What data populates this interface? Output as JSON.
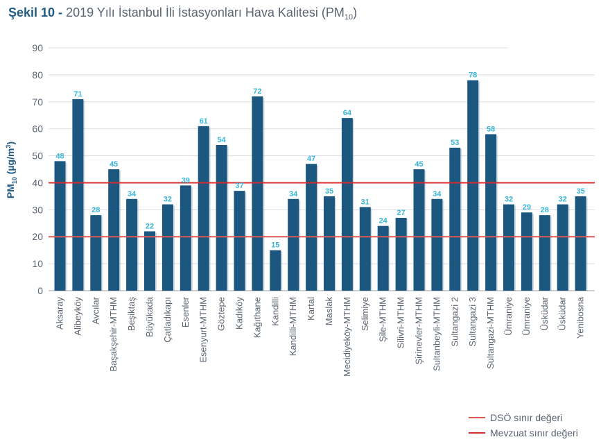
{
  "title": {
    "figure": "Şekil 10 -",
    "text": "2019 Yılı İstanbul İli İstasyonları Hava Kalitesi (PM",
    "sub": "10",
    "close": ")"
  },
  "chart_data": {
    "type": "bar",
    "ylabel": "PM10 (µg/m³)",
    "ylim": [
      0,
      90
    ],
    "yticks": [
      0,
      10,
      20,
      30,
      40,
      50,
      60,
      70,
      80,
      90
    ],
    "grid": true,
    "categories": [
      "Aksaray",
      "Alibeyköy",
      "Avcılar",
      "Başakşehir-MTHM",
      "Beşiktaş",
      "Büyükada",
      "Çatladıkapı",
      "Esenler",
      "Esenyurt-MTHM",
      "Göztepe",
      "Kadıköy",
      "Kağıthane",
      "Kandilli",
      "Kandilli-MTHM",
      "Kartal",
      "Maslak",
      "Mecidiyeköy-MTHM",
      "Selimiye",
      "Şile-MTHM",
      "Silivri-MTHM",
      "Şirinevler-MTHM",
      "Sultanbeyli-MTHM",
      "Sultangazi 2",
      "Sultangazi 3",
      "Sultangazi-MTHM",
      "Ümraniye",
      "Ümraniye",
      "Üsküdar",
      "Üsküdar",
      "Yenibosna"
    ],
    "values": [
      48,
      71,
      28,
      45,
      34,
      22,
      32,
      39,
      61,
      54,
      37,
      72,
      15,
      34,
      47,
      35,
      64,
      31,
      24,
      27,
      45,
      34,
      53,
      78,
      58,
      32,
      29,
      28,
      32,
      35
    ],
    "bar_color": "#1c577f",
    "label_color": "#37b6d9",
    "reference_lines": [
      {
        "name": "DSÖ sınır değeri",
        "value": 20,
        "color": "#e25656"
      },
      {
        "name": "Mevzuat sınır değeri",
        "value": 40,
        "color": "#d92b2b"
      }
    ],
    "legend_position": "bottom-right"
  }
}
